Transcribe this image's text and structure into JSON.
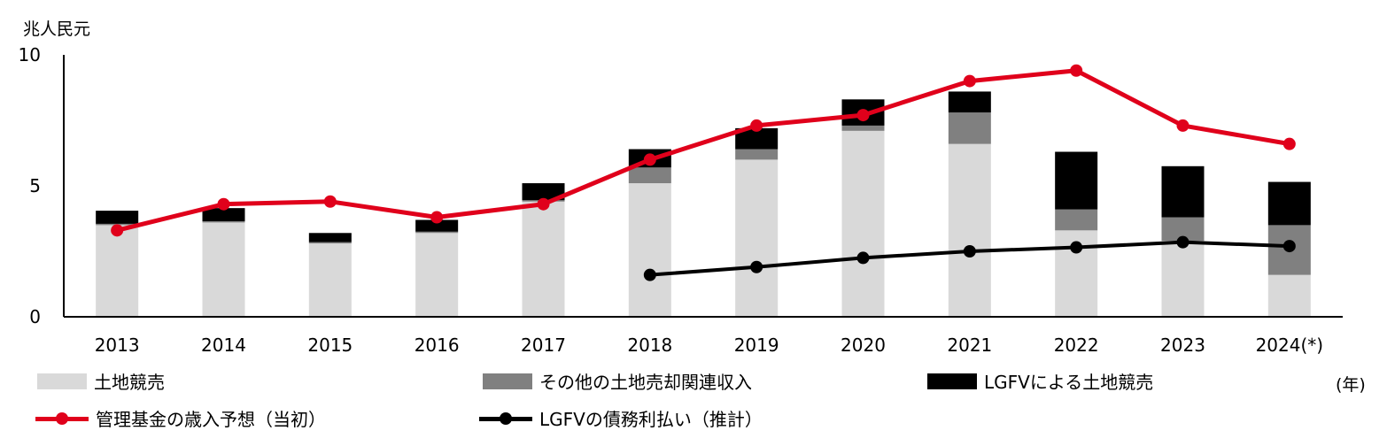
{
  "chart_data": {
    "type": "bar",
    "unit_label": "兆人民元",
    "x_unit_label": "(年)",
    "categories": [
      "2013",
      "2014",
      "2015",
      "2016",
      "2017",
      "2018",
      "2019",
      "2020",
      "2021",
      "2022",
      "2023",
      "2024(*)"
    ],
    "ylim": [
      0,
      10
    ],
    "yticks": [
      0,
      5,
      10
    ],
    "stacked": true,
    "series": [
      {
        "name": "土地競売",
        "type": "bar",
        "color": "#d9d9d9",
        "values": [
          3.5,
          3.6,
          2.8,
          3.2,
          4.4,
          5.1,
          6.0,
          7.1,
          6.6,
          3.3,
          2.9,
          1.6
        ]
      },
      {
        "name": "その他の土地売却関連収入",
        "type": "bar",
        "color": "#808080",
        "values": [
          0.05,
          0.05,
          0.05,
          0.05,
          0.05,
          0.6,
          0.4,
          0.2,
          1.2,
          0.8,
          0.9,
          1.9
        ]
      },
      {
        "name": "LGFVによる土地競売",
        "type": "bar",
        "color": "#000000",
        "values": [
          0.5,
          0.5,
          0.35,
          0.45,
          0.65,
          0.7,
          0.8,
          1.0,
          0.8,
          2.2,
          1.95,
          1.65
        ]
      },
      {
        "name": "管理基金の歳入予想（当初）",
        "type": "line",
        "color": "#e0001b",
        "values": [
          3.3,
          4.3,
          4.4,
          3.8,
          4.3,
          6.0,
          7.3,
          7.7,
          9.0,
          9.4,
          7.3,
          6.6
        ]
      },
      {
        "name": "LGFVの債務利払い（推計）",
        "type": "line",
        "color": "#000000",
        "values": [
          null,
          null,
          null,
          null,
          null,
          1.6,
          1.9,
          2.25,
          2.5,
          2.65,
          2.85,
          2.7
        ]
      }
    ]
  }
}
